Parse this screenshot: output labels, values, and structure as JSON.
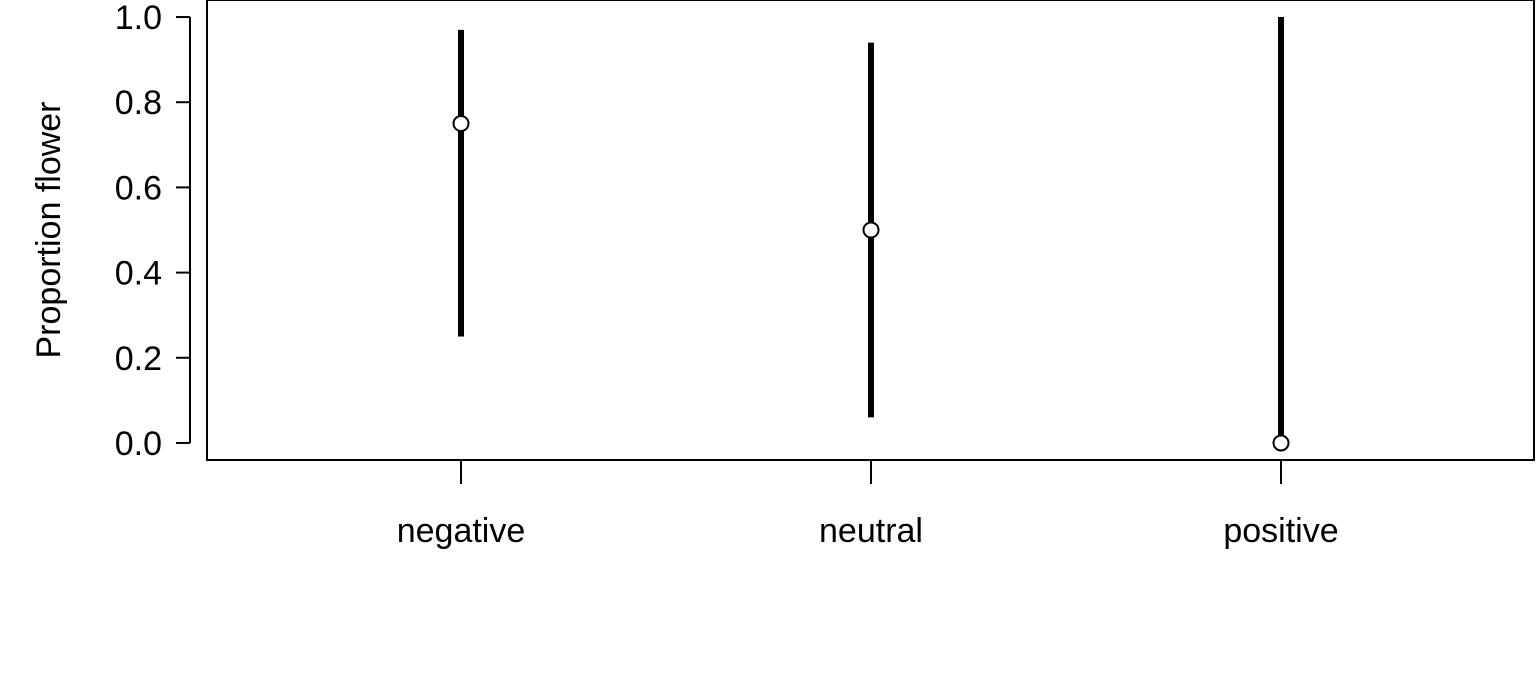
{
  "chart_data": {
    "type": "scatter",
    "title": "",
    "xlabel": "",
    "ylabel": "Proportion flower",
    "categories": [
      "negative",
      "neutral",
      "positive"
    ],
    "points": [
      {
        "category": "negative",
        "value": 0.75,
        "lower": 0.25,
        "upper": 0.97
      },
      {
        "category": "neutral",
        "value": 0.5,
        "lower": 0.06,
        "upper": 0.94
      },
      {
        "category": "positive",
        "value": 0.0,
        "lower": 0.0,
        "upper": 1.0
      }
    ],
    "y_ticks": [
      "0.0",
      "0.2",
      "0.4",
      "0.6",
      "0.8",
      "1.0"
    ],
    "ylim": [
      -0.04,
      1.04
    ],
    "grid": false,
    "legend": "none",
    "colors": {
      "line": "#000000",
      "marker_fill": "#ffffff",
      "marker_stroke": "#000000"
    }
  }
}
